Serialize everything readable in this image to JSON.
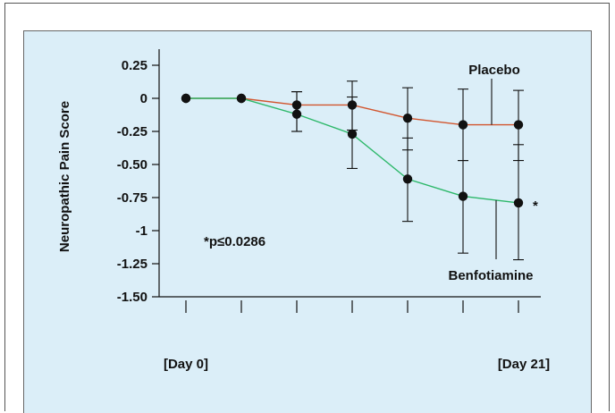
{
  "chart_data": {
    "type": "line",
    "title": "",
    "xlabel": "",
    "ylabel": "Neuropathic Pain Score",
    "ylim": [
      -1.5,
      0.25
    ],
    "y_ticks": [
      0.25,
      0,
      -0.25,
      -0.5,
      -0.75,
      -1,
      -1.25,
      -1.5
    ],
    "y_tick_labels": [
      "0.25",
      "0",
      "-0.25",
      "-0.50",
      "-0.75",
      "-1",
      "-1.25",
      "-1.50"
    ],
    "x_ticks": [
      1,
      2,
      3,
      4,
      5,
      6,
      7
    ],
    "x_axis_labels": {
      "start": "[Day 0]",
      "end": "[Day 21]"
    },
    "grid": false,
    "series": [
      {
        "name": "Placebo",
        "color": "#d2552e",
        "x": [
          1,
          2,
          3,
          4,
          5,
          6,
          7
        ],
        "y": [
          0,
          0,
          -0.05,
          -0.05,
          -0.15,
          -0.2,
          -0.2
        ],
        "err_low": [
          0,
          0,
          0.2,
          0.19,
          0.24,
          0.27,
          0.27
        ],
        "err_high": [
          0,
          0,
          0.1,
          0.18,
          0.23,
          0.27,
          0.26
        ]
      },
      {
        "name": "Benfotiamine",
        "color": "#2db86a",
        "x": [
          1,
          2,
          3,
          4,
          5,
          6,
          7
        ],
        "y": [
          0,
          0,
          -0.12,
          -0.27,
          -0.61,
          -0.74,
          -0.79
        ],
        "err_low": [
          0,
          0,
          0.13,
          0.26,
          0.32,
          0.43,
          0.43
        ],
        "err_high": [
          0,
          0,
          0.17,
          0.28,
          0.31,
          0.27,
          0.44
        ]
      }
    ],
    "annotations": [
      {
        "text": "*p≤0.0286"
      },
      {
        "text": "*"
      }
    ]
  }
}
